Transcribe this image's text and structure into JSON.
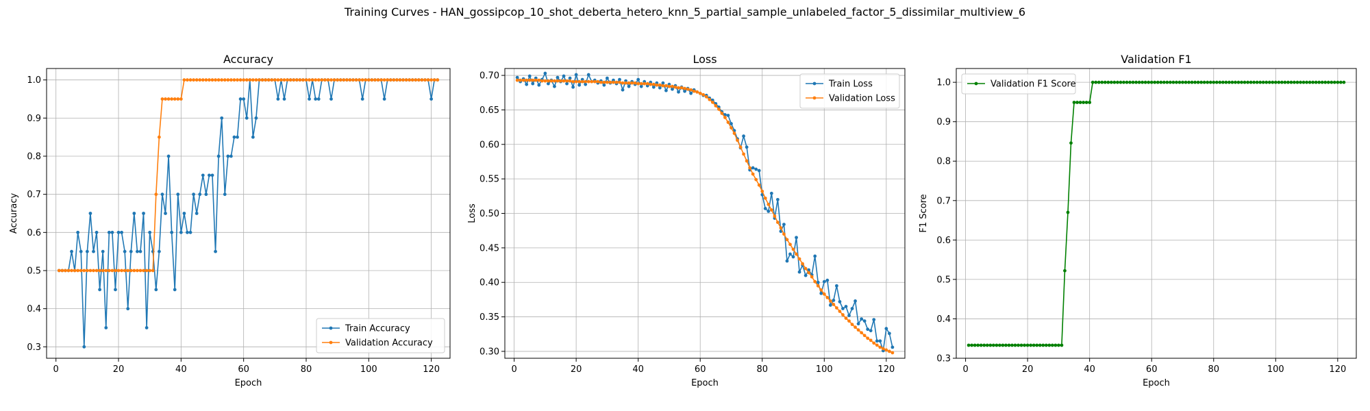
{
  "figure": {
    "title": "Training Curves - HAN_gossipcop_10_shot_deberta_hetero_knn_5_partial_sample_unlabeled_factor_5_dissimilar_multiview_6"
  },
  "chart_data": [
    {
      "type": "line",
      "title": "Accuracy",
      "xlabel": "Epoch",
      "ylabel": "Accuracy",
      "xlim": [
        -3,
        126
      ],
      "ylim": [
        0.27,
        1.03
      ],
      "xticks": [
        0,
        20,
        40,
        60,
        80,
        100,
        120
      ],
      "yticks": [
        0.3,
        0.4,
        0.5,
        0.6,
        0.7,
        0.8,
        0.9,
        1.0
      ],
      "tick_format": "1dp",
      "grid": true,
      "legend": "lower right",
      "series": [
        {
          "name": "Train Accuracy",
          "color": "#1f77b4",
          "x_start": 1,
          "values": [
            0.5,
            0.5,
            0.5,
            0.5,
            0.55,
            0.5,
            0.6,
            0.55,
            0.3,
            0.55,
            0.65,
            0.55,
            0.6,
            0.45,
            0.55,
            0.35,
            0.6,
            0.6,
            0.45,
            0.6,
            0.6,
            0.55,
            0.4,
            0.55,
            0.65,
            0.55,
            0.55,
            0.65,
            0.35,
            0.6,
            0.55,
            0.45,
            0.55,
            0.7,
            0.65,
            0.8,
            0.6,
            0.45,
            0.7,
            0.6,
            0.65,
            0.6,
            0.6,
            0.7,
            0.65,
            0.7,
            0.75,
            0.7,
            0.75,
            0.75,
            0.55,
            0.8,
            0.9,
            0.7,
            0.8,
            0.8,
            0.85,
            0.85,
            0.95,
            0.95,
            0.9,
            1.0,
            0.85,
            0.9,
            1.0,
            1.0,
            1.0,
            1.0,
            1.0,
            1.0,
            0.95,
            1.0,
            0.95,
            1.0,
            1.0,
            1.0,
            1.0,
            1.0,
            1.0,
            1.0,
            0.95,
            1.0,
            0.95,
            0.95,
            1.0,
            1.0,
            1.0,
            0.95,
            1.0,
            1.0,
            1.0,
            1.0,
            1.0,
            1.0,
            1.0,
            1.0,
            1.0,
            0.95,
            1.0,
            1.0,
            1.0,
            1.0,
            1.0,
            1.0,
            0.95,
            1.0,
            1.0,
            1.0,
            1.0,
            1.0,
            1.0,
            1.0,
            1.0,
            1.0,
            1.0,
            1.0,
            1.0,
            1.0,
            1.0,
            0.95,
            1.0,
            1.0
          ]
        },
        {
          "name": "Validation Accuracy",
          "color": "#ff7f0e",
          "x_start": 1,
          "values": [
            0.5,
            0.5,
            0.5,
            0.5,
            0.5,
            0.5,
            0.5,
            0.5,
            0.5,
            0.5,
            0.5,
            0.5,
            0.5,
            0.5,
            0.5,
            0.5,
            0.5,
            0.5,
            0.5,
            0.5,
            0.5,
            0.5,
            0.5,
            0.5,
            0.5,
            0.5,
            0.5,
            0.5,
            0.5,
            0.5,
            0.5,
            0.7,
            0.85,
            0.95,
            0.95,
            0.95,
            0.95,
            0.95,
            0.95,
            0.95,
            1.0,
            1.0,
            1.0,
            1.0,
            1.0,
            1.0,
            1.0,
            1.0,
            1.0,
            1.0,
            1.0,
            1.0,
            1.0,
            1.0,
            1.0,
            1.0,
            1.0,
            1.0,
            1.0,
            1.0,
            1.0,
            1.0,
            1.0,
            1.0,
            1.0,
            1.0,
            1.0,
            1.0,
            1.0,
            1.0,
            1.0,
            1.0,
            1.0,
            1.0,
            1.0,
            1.0,
            1.0,
            1.0,
            1.0,
            1.0,
            1.0,
            1.0,
            1.0,
            1.0,
            1.0,
            1.0,
            1.0,
            1.0,
            1.0,
            1.0,
            1.0,
            1.0,
            1.0,
            1.0,
            1.0,
            1.0,
            1.0,
            1.0,
            1.0,
            1.0,
            1.0,
            1.0,
            1.0,
            1.0,
            1.0,
            1.0,
            1.0,
            1.0,
            1.0,
            1.0,
            1.0,
            1.0,
            1.0,
            1.0,
            1.0,
            1.0,
            1.0,
            1.0,
            1.0,
            1.0,
            1.0,
            1.0
          ]
        }
      ]
    },
    {
      "type": "line",
      "title": "Loss",
      "xlabel": "Epoch",
      "ylabel": "Loss",
      "xlim": [
        -3,
        126
      ],
      "ylim": [
        0.29,
        0.71
      ],
      "xticks": [
        0,
        20,
        40,
        60,
        80,
        100,
        120
      ],
      "yticks": [
        0.3,
        0.35,
        0.4,
        0.45,
        0.5,
        0.55,
        0.6,
        0.65,
        0.7
      ],
      "tick_format": "2dp",
      "grid": true,
      "legend": "upper right",
      "series": [
        {
          "name": "Train Loss",
          "color": "#1f77b4",
          "x_start": 1,
          "values": [
            0.697,
            0.691,
            0.695,
            0.687,
            0.699,
            0.688,
            0.696,
            0.686,
            0.694,
            0.703,
            0.688,
            0.693,
            0.684,
            0.697,
            0.691,
            0.699,
            0.688,
            0.696,
            0.683,
            0.701,
            0.686,
            0.694,
            0.687,
            0.701,
            0.691,
            0.693,
            0.689,
            0.692,
            0.686,
            0.696,
            0.689,
            0.693,
            0.688,
            0.694,
            0.679,
            0.692,
            0.684,
            0.691,
            0.687,
            0.694,
            0.684,
            0.691,
            0.685,
            0.69,
            0.683,
            0.689,
            0.682,
            0.689,
            0.678,
            0.687,
            0.68,
            0.685,
            0.676,
            0.683,
            0.677,
            0.681,
            0.674,
            0.679,
            0.676,
            0.674,
            0.671,
            0.671,
            0.667,
            0.664,
            0.659,
            0.654,
            0.647,
            0.643,
            0.642,
            0.63,
            0.62,
            0.608,
            0.595,
            0.612,
            0.596,
            0.563,
            0.566,
            0.564,
            0.562,
            0.527,
            0.507,
            0.503,
            0.529,
            0.493,
            0.52,
            0.474,
            0.484,
            0.431,
            0.441,
            0.437,
            0.465,
            0.415,
            0.425,
            0.41,
            0.418,
            0.411,
            0.438,
            0.4,
            0.384,
            0.401,
            0.403,
            0.367,
            0.374,
            0.395,
            0.372,
            0.362,
            0.365,
            0.352,
            0.362,
            0.373,
            0.34,
            0.347,
            0.344,
            0.332,
            0.33,
            0.346,
            0.315,
            0.315,
            0.301,
            0.333,
            0.326,
            0.306
          ]
        },
        {
          "name": "Validation Loss",
          "color": "#ff7f0e",
          "x_start": 1,
          "values": [
            0.693,
            0.693,
            0.693,
            0.693,
            0.693,
            0.693,
            0.693,
            0.693,
            0.692,
            0.692,
            0.692,
            0.692,
            0.692,
            0.692,
            0.692,
            0.692,
            0.692,
            0.692,
            0.691,
            0.691,
            0.691,
            0.691,
            0.691,
            0.691,
            0.691,
            0.691,
            0.691,
            0.69,
            0.69,
            0.69,
            0.69,
            0.69,
            0.69,
            0.69,
            0.689,
            0.689,
            0.689,
            0.689,
            0.689,
            0.688,
            0.688,
            0.688,
            0.688,
            0.687,
            0.687,
            0.686,
            0.686,
            0.685,
            0.685,
            0.684,
            0.684,
            0.683,
            0.682,
            0.682,
            0.681,
            0.68,
            0.679,
            0.677,
            0.676,
            0.674,
            0.672,
            0.669,
            0.665,
            0.661,
            0.656,
            0.651,
            0.645,
            0.639,
            0.632,
            0.624,
            0.616,
            0.606,
            0.596,
            0.586,
            0.576,
            0.566,
            0.557,
            0.549,
            0.541,
            0.532,
            0.522,
            0.513,
            0.505,
            0.496,
            0.487,
            0.479,
            0.47,
            0.462,
            0.455,
            0.448,
            0.441,
            0.434,
            0.427,
            0.42,
            0.414,
            0.408,
            0.401,
            0.395,
            0.389,
            0.383,
            0.378,
            0.373,
            0.368,
            0.363,
            0.358,
            0.353,
            0.348,
            0.344,
            0.339,
            0.335,
            0.331,
            0.327,
            0.323,
            0.319,
            0.316,
            0.312,
            0.309,
            0.306,
            0.304,
            0.302,
            0.3,
            0.298
          ]
        }
      ]
    },
    {
      "type": "line",
      "title": "Validation F1",
      "xlabel": "Epoch",
      "ylabel": "F1 Score",
      "xlim": [
        -3,
        126
      ],
      "ylim": [
        0.3,
        1.035
      ],
      "xticks": [
        0,
        20,
        40,
        60,
        80,
        100,
        120
      ],
      "yticks": [
        0.3,
        0.4,
        0.5,
        0.6,
        0.7,
        0.8,
        0.9,
        1.0
      ],
      "tick_format": "1dp",
      "grid": true,
      "legend": "upper left",
      "series": [
        {
          "name": "Validation F1 Score",
          "color": "#008000",
          "x_start": 1,
          "values": [
            0.333,
            0.333,
            0.333,
            0.333,
            0.333,
            0.333,
            0.333,
            0.333,
            0.333,
            0.333,
            0.333,
            0.333,
            0.333,
            0.333,
            0.333,
            0.333,
            0.333,
            0.333,
            0.333,
            0.333,
            0.333,
            0.333,
            0.333,
            0.333,
            0.333,
            0.333,
            0.333,
            0.333,
            0.333,
            0.333,
            0.333,
            0.522,
            0.67,
            0.846,
            0.949,
            0.949,
            0.949,
            0.949,
            0.949,
            0.949,
            1.0,
            1.0,
            1.0,
            1.0,
            1.0,
            1.0,
            1.0,
            1.0,
            1.0,
            1.0,
            1.0,
            1.0,
            1.0,
            1.0,
            1.0,
            1.0,
            1.0,
            1.0,
            1.0,
            1.0,
            1.0,
            1.0,
            1.0,
            1.0,
            1.0,
            1.0,
            1.0,
            1.0,
            1.0,
            1.0,
            1.0,
            1.0,
            1.0,
            1.0,
            1.0,
            1.0,
            1.0,
            1.0,
            1.0,
            1.0,
            1.0,
            1.0,
            1.0,
            1.0,
            1.0,
            1.0,
            1.0,
            1.0,
            1.0,
            1.0,
            1.0,
            1.0,
            1.0,
            1.0,
            1.0,
            1.0,
            1.0,
            1.0,
            1.0,
            1.0,
            1.0,
            1.0,
            1.0,
            1.0,
            1.0,
            1.0,
            1.0,
            1.0,
            1.0,
            1.0,
            1.0,
            1.0,
            1.0,
            1.0,
            1.0,
            1.0,
            1.0,
            1.0,
            1.0,
            1.0,
            1.0,
            1.0
          ]
        }
      ]
    }
  ]
}
